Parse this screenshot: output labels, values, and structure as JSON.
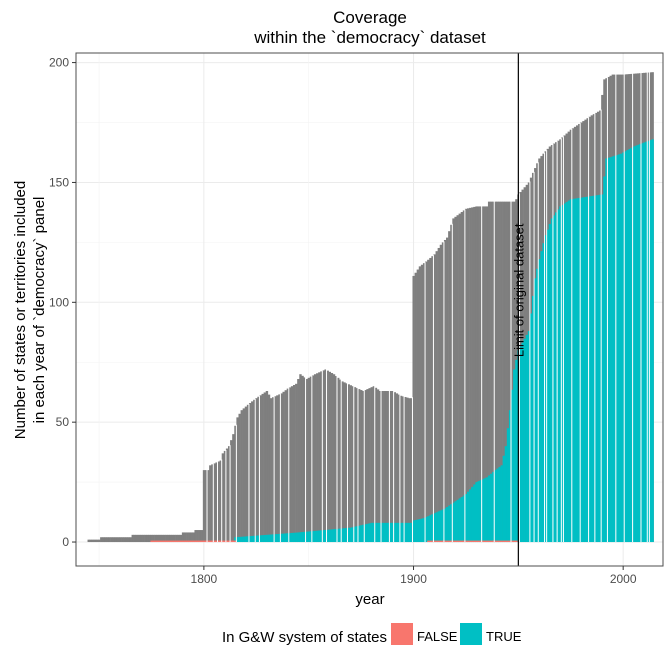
{
  "chart_data": {
    "type": "bar",
    "title": "Coverage",
    "subtitle": "within the `democracy` dataset",
    "xlabel": "year",
    "ylabel": [
      "Number of states or territories included",
      "in each year of `democracy` panel"
    ],
    "xlim": [
      1739,
      2019
    ],
    "ylim": [
      -10,
      204
    ],
    "x_ticks": [
      1800,
      1900,
      2000
    ],
    "y_ticks": [
      0,
      50,
      100,
      150,
      200
    ],
    "grid": true,
    "legend": {
      "title": "In G&W system of states",
      "position": "bottom",
      "entries": [
        {
          "label": "FALSE",
          "color": "#f8766d"
        },
        {
          "label": "TRUE",
          "color": "#00bfc4"
        }
      ]
    },
    "annotation": {
      "x": 1950,
      "label": "Limit of original dataset"
    },
    "colors": {
      "total": "#7f7f7f",
      "false": "#f8766d",
      "true": "#00bfc4"
    },
    "series_points": {
      "total": [
        [
          1745,
          1
        ],
        [
          1750,
          1
        ],
        [
          1751,
          2
        ],
        [
          1765,
          2
        ],
        [
          1766,
          3
        ],
        [
          1789,
          3
        ],
        [
          1790,
          4
        ],
        [
          1795,
          4
        ],
        [
          1796,
          5
        ],
        [
          1799,
          5
        ],
        [
          1800,
          30
        ],
        [
          1802,
          30
        ],
        [
          1803,
          32
        ],
        [
          1808,
          34
        ],
        [
          1809,
          37
        ],
        [
          1812,
          40
        ],
        [
          1814,
          45
        ],
        [
          1816,
          52
        ],
        [
          1818,
          55
        ],
        [
          1822,
          58
        ],
        [
          1825,
          60
        ],
        [
          1830,
          63
        ],
        [
          1832,
          60
        ],
        [
          1837,
          62
        ],
        [
          1840,
          64
        ],
        [
          1844,
          66
        ],
        [
          1846,
          70
        ],
        [
          1849,
          68
        ],
        [
          1853,
          70
        ],
        [
          1858,
          72
        ],
        [
          1862,
          70
        ],
        [
          1866,
          67
        ],
        [
          1871,
          65
        ],
        [
          1876,
          63
        ],
        [
          1881,
          65
        ],
        [
          1884,
          63
        ],
        [
          1890,
          63
        ],
        [
          1894,
          61
        ],
        [
          1898,
          60
        ],
        [
          1899,
          60
        ],
        [
          1900,
          111
        ],
        [
          1903,
          115
        ],
        [
          1906,
          117
        ],
        [
          1910,
          120
        ],
        [
          1913,
          124
        ],
        [
          1916,
          127
        ],
        [
          1919,
          135
        ],
        [
          1925,
          139
        ],
        [
          1930,
          140
        ],
        [
          1935,
          140
        ],
        [
          1936,
          142
        ],
        [
          1948,
          142
        ],
        [
          1949,
          143
        ],
        [
          1950,
          145
        ],
        [
          1955,
          150
        ],
        [
          1960,
          160
        ],
        [
          1965,
          165
        ],
        [
          1970,
          168
        ],
        [
          1975,
          172
        ],
        [
          1980,
          175
        ],
        [
          1985,
          178
        ],
        [
          1989,
          180
        ],
        [
          1991,
          193
        ],
        [
          1995,
          195
        ],
        [
          2000,
          195
        ],
        [
          2014,
          196
        ]
      ],
      "true": [
        [
          1815,
          2
        ],
        [
          1830,
          3
        ],
        [
          1845,
          4
        ],
        [
          1870,
          6
        ],
        [
          1880,
          8
        ],
        [
          1899,
          8
        ],
        [
          1900,
          9
        ],
        [
          1905,
          10
        ],
        [
          1910,
          12
        ],
        [
          1915,
          14
        ],
        [
          1920,
          17
        ],
        [
          1925,
          20
        ],
        [
          1930,
          25
        ],
        [
          1935,
          27
        ],
        [
          1939,
          30
        ],
        [
          1942,
          32
        ],
        [
          1944,
          40
        ],
        [
          1946,
          55
        ],
        [
          1948,
          72
        ],
        [
          1950,
          80
        ],
        [
          1955,
          88
        ],
        [
          1958,
          110
        ],
        [
          1960,
          118
        ],
        [
          1963,
          128
        ],
        [
          1966,
          135
        ],
        [
          1970,
          140
        ],
        [
          1975,
          143
        ],
        [
          1990,
          145
        ],
        [
          1992,
          160
        ],
        [
          1999,
          162
        ],
        [
          2005,
          165
        ],
        [
          2014,
          168
        ]
      ],
      "false": [
        [
          1775,
          0.6
        ],
        [
          1815,
          0.6
        ],
        [
          1816,
          0
        ],
        [
          1906,
          0
        ],
        [
          1907,
          0.6
        ],
        [
          1949,
          0.6
        ],
        [
          1950,
          0
        ]
      ],
      "gaps_years": [
        1801,
        1804,
        1806,
        1808,
        1810,
        1812,
        1815,
        1821,
        1824,
        1826,
        1833,
        1836,
        1840,
        1848,
        1851,
        1856,
        1858,
        1863,
        1865,
        1868,
        1871,
        1873,
        1876,
        1881,
        1884,
        1888,
        1890,
        1893,
        1895,
        1899,
        1905,
        1909,
        1914,
        1918,
        1924,
        1932,
        1938,
        1946,
        1950,
        1955,
        1957,
        1959,
        1962,
        1963,
        1966,
        1968,
        1970,
        1971,
        1975,
        1979,
        1983,
        1986,
        1989,
        1992,
        1996,
        2000,
        2004,
        2008,
        2011,
        2012
      ]
    }
  }
}
